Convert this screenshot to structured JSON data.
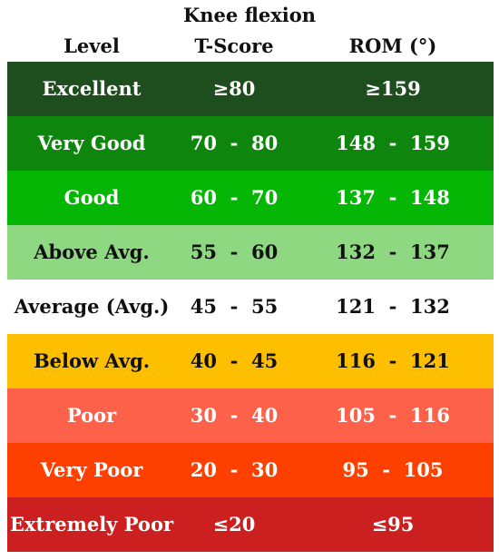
{
  "title": "Knee flexion",
  "headers": {
    "level": "Level",
    "tscore": "T-Score",
    "rom": "ROM (°)"
  },
  "rows": [
    {
      "level": "Excellent",
      "tscore": "≥80",
      "rom": "≥159",
      "bg": "#1e4d1e",
      "fg": "#ffffff"
    },
    {
      "level": "Very Good",
      "tscore": "70  -  80",
      "rom": "148  -  159",
      "bg": "#0e860e",
      "fg": "#ffffff"
    },
    {
      "level": "Good",
      "tscore": "60  -  70",
      "rom": "137  -  148",
      "bg": "#05b605",
      "fg": "#ffffff"
    },
    {
      "level": "Above Avg.",
      "tscore": "55  -  60",
      "rom": "132  -  137",
      "bg": "#8ed882",
      "fg": "#111111"
    },
    {
      "level": "Average (Avg.)",
      "tscore": "45  -  55",
      "rom": "121  -  132",
      "bg": "#ffffff",
      "fg": "#111111"
    },
    {
      "level": "Below Avg.",
      "tscore": "40  -  45",
      "rom": "116  -  121",
      "bg": "#fdbf00",
      "fg": "#111111"
    },
    {
      "level": "Poor",
      "tscore": "30  -  40",
      "rom": "105  -  116",
      "bg": "#fd6149",
      "fg": "#ffffff"
    },
    {
      "level": "Very Poor",
      "tscore": "20  -  30",
      "rom": "95  -  105",
      "bg": "#fd4000",
      "fg": "#ffffff"
    },
    {
      "level": "Extremely Poor",
      "tscore": "≤20",
      "rom": "≤95",
      "bg": "#cc2020",
      "fg": "#ffffff"
    }
  ]
}
